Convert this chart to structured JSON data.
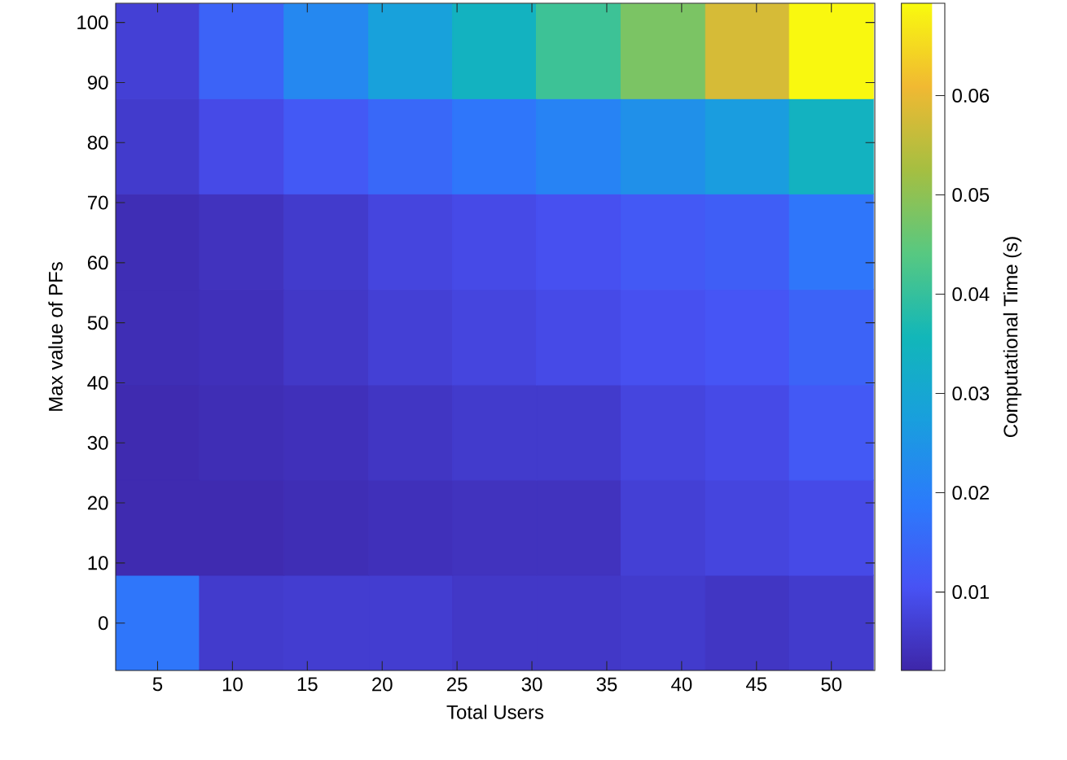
{
  "chart_data": {
    "type": "heatmap",
    "xlabel": "Total Users",
    "ylabel": "Max value of PFs",
    "clabel": "Computational Time (s)",
    "x": [
      5,
      10.6,
      16.3,
      21.9,
      27.5,
      33.1,
      38.8,
      44.4,
      50
    ],
    "y": [
      95.2,
      79.4,
      63.5,
      47.6,
      31.7,
      15.9,
      0
    ],
    "xlim": [
      2.2,
      52.9
    ],
    "ylim": [
      -7.9,
      103.2
    ],
    "xticks": [
      5,
      10,
      15,
      20,
      25,
      30,
      35,
      40,
      45,
      50
    ],
    "yticks": [
      0,
      10,
      20,
      30,
      40,
      50,
      60,
      70,
      80,
      90,
      100
    ],
    "cells": [
      [
        0.007,
        0.014,
        0.022,
        0.028,
        0.034,
        0.041,
        0.048,
        0.058,
        0.069
      ],
      [
        0.006,
        0.009,
        0.012,
        0.015,
        0.018,
        0.021,
        0.024,
        0.027,
        0.034
      ],
      [
        0.0035,
        0.0045,
        0.006,
        0.008,
        0.009,
        0.01,
        0.012,
        0.013,
        0.018
      ],
      [
        0.0035,
        0.004,
        0.0055,
        0.007,
        0.008,
        0.009,
        0.01,
        0.011,
        0.014
      ],
      [
        0.003,
        0.0035,
        0.004,
        0.005,
        0.006,
        0.006,
        0.008,
        0.009,
        0.012
      ],
      [
        0.003,
        0.003,
        0.0035,
        0.004,
        0.0045,
        0.0045,
        0.007,
        0.008,
        0.009
      ],
      [
        0.018,
        0.006,
        0.0065,
        0.0065,
        0.0055,
        0.0055,
        0.006,
        0.005,
        0.006
      ]
    ],
    "clim": [
      0.0021,
      0.0693
    ],
    "cticks": [
      0.01,
      0.02,
      0.03,
      0.04,
      0.05,
      0.06
    ]
  }
}
